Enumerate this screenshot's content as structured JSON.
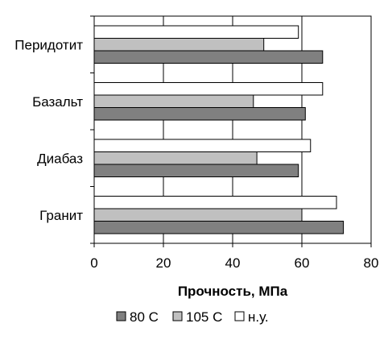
{
  "chart_data": {
    "type": "bar",
    "orientation": "horizontal",
    "categories": [
      "Гранит",
      "Диабаз",
      "Базальт",
      "Перидотит"
    ],
    "series": [
      {
        "name": "80 С",
        "color": "#808080",
        "values": [
          72,
          59,
          61,
          66
        ]
      },
      {
        "name": "105 С",
        "color": "#c0c0c0",
        "values": [
          60,
          47,
          46,
          49
        ]
      },
      {
        "name": "н.у.",
        "color": "#ffffff",
        "values": [
          70,
          62.5,
          66,
          59
        ]
      }
    ],
    "xlabel": "Прочность, МПа",
    "xlim": [
      0,
      80
    ],
    "xticks": [
      0,
      20,
      40,
      60,
      80
    ],
    "grid": "vertical",
    "legend_position": "bottom"
  }
}
